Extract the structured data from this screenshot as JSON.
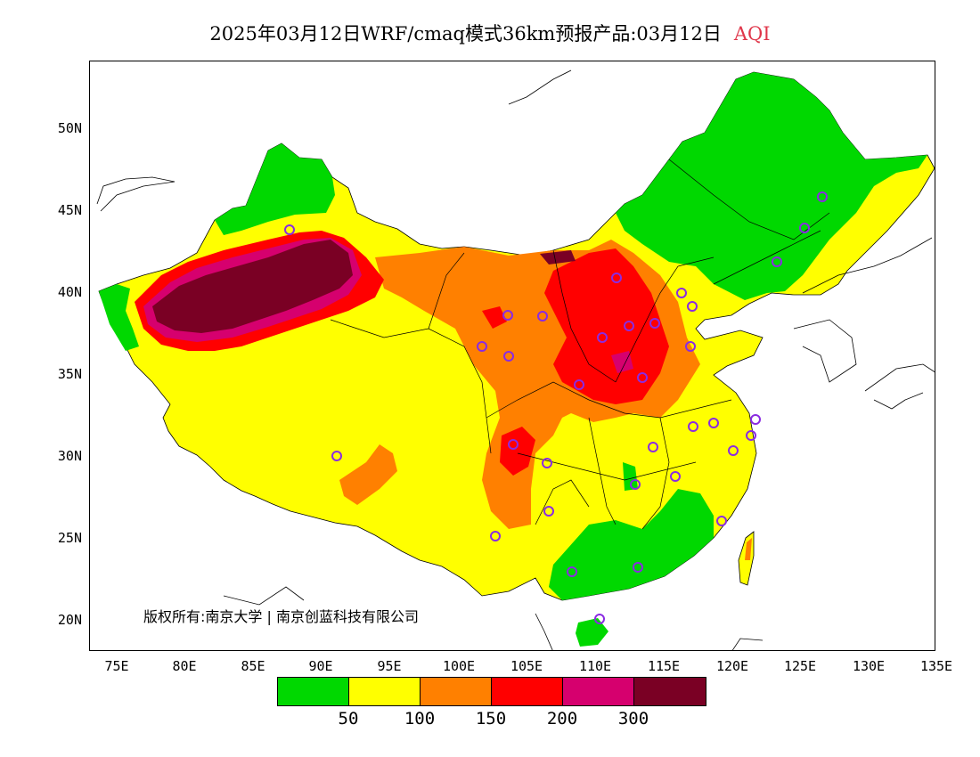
{
  "title": {
    "main": "2025年03月12日WRF/cmaq模式36km预报产品:03月12日",
    "variable": "AQI"
  },
  "axes": {
    "lat_labels": [
      "50N",
      "45N",
      "40N",
      "35N",
      "30N",
      "25N",
      "20N"
    ],
    "lon_labels": [
      "75E",
      "80E",
      "85E",
      "90E",
      "95E",
      "100E",
      "105E",
      "110E",
      "115E",
      "120E",
      "125E",
      "130E",
      "135E"
    ]
  },
  "copyright": "版权所有:南京大学 | 南京创蓝科技有限公司",
  "legend": {
    "colors": [
      "#00d800",
      "#ffff00",
      "#ff8000",
      "#ff0000",
      "#d6006e",
      "#7a0024"
    ],
    "ticks": [
      "50",
      "100",
      "150",
      "200",
      "300"
    ]
  },
  "colors": {
    "good": "#00d800",
    "moderate": "#ffff00",
    "unhealthy_sensitive": "#ff8000",
    "unhealthy": "#ff0000",
    "very_unhealthy": "#d6006e",
    "hazardous": "#7a0024",
    "station_marker": "#8a2be2",
    "title_accent": "#e0364a"
  }
}
